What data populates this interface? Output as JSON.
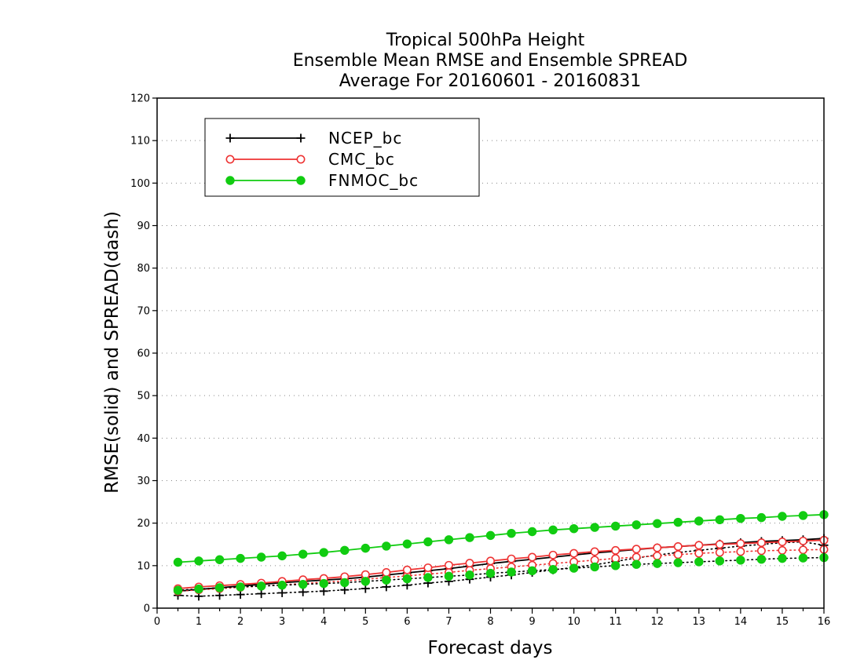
{
  "chart_data": {
    "type": "line",
    "title": [
      "Tropical 500hPa Height",
      "Ensemble Mean RMSE and Ensemble SPREAD",
      "Average For 20160601 - 20160831"
    ],
    "xlabel": "Forecast days",
    "ylabel": "RMSE(solid) and SPREAD(dash)",
    "xlim": [
      0,
      16
    ],
    "ylim": [
      0,
      120
    ],
    "xticks": [
      0,
      1,
      2,
      3,
      4,
      5,
      6,
      7,
      8,
      9,
      10,
      11,
      12,
      13,
      14,
      15,
      16
    ],
    "yticks": [
      0,
      10,
      20,
      30,
      40,
      50,
      60,
      70,
      80,
      90,
      100,
      110,
      120
    ],
    "grid": "horizontal-dotted",
    "legend_position": "top-left",
    "x": [
      0.5,
      1.0,
      1.5,
      2.0,
      2.5,
      3.0,
      3.5,
      4.0,
      4.5,
      5.0,
      5.5,
      6.0,
      6.5,
      7.0,
      7.5,
      8.0,
      8.5,
      9.0,
      9.5,
      10.0,
      10.5,
      11.0,
      11.5,
      12.0,
      12.5,
      13.0,
      13.5,
      14.0,
      14.5,
      15.0,
      15.5,
      16.0
    ],
    "series": [
      {
        "name": "NCEP_bc",
        "color": "#000000",
        "marker": "plus",
        "rmse": [
          4.0,
          4.4,
          4.8,
          5.2,
          5.6,
          6.0,
          6.3,
          6.6,
          6.9,
          7.3,
          7.8,
          8.3,
          8.8,
          9.3,
          9.9,
          10.5,
          11.0,
          11.5,
          12.0,
          12.5,
          13.0,
          13.4,
          13.8,
          14.2,
          14.5,
          14.8,
          15.1,
          15.4,
          15.7,
          15.9,
          16.1,
          16.4
        ],
        "spread": [
          3.0,
          2.8,
          3.0,
          3.2,
          3.4,
          3.6,
          3.8,
          4.0,
          4.3,
          4.6,
          5.0,
          5.4,
          5.9,
          6.3,
          6.8,
          7.3,
          7.8,
          8.4,
          9.0,
          9.6,
          10.2,
          11.0,
          11.8,
          12.5,
          13.1,
          13.6,
          14.1,
          14.6,
          15.0,
          15.4,
          15.6,
          14.8
        ]
      },
      {
        "name": "CMC_bc",
        "color": "#ee3333",
        "marker": "open-circle",
        "rmse": [
          4.6,
          5.0,
          5.3,
          5.6,
          5.9,
          6.3,
          6.7,
          7.0,
          7.4,
          7.9,
          8.4,
          9.0,
          9.5,
          10.1,
          10.6,
          11.1,
          11.6,
          12.0,
          12.5,
          12.9,
          13.3,
          13.6,
          13.9,
          14.2,
          14.5,
          14.8,
          15.0,
          15.2,
          15.4,
          15.6,
          15.8,
          16.0
        ],
        "spread": [
          4.0,
          4.3,
          4.6,
          4.9,
          5.2,
          5.5,
          5.8,
          6.1,
          6.4,
          6.8,
          7.2,
          7.6,
          8.0,
          8.4,
          8.9,
          9.3,
          9.7,
          10.1,
          10.5,
          10.9,
          11.3,
          11.7,
          12.0,
          12.3,
          12.6,
          12.9,
          13.1,
          13.3,
          13.5,
          13.6,
          13.7,
          13.8
        ]
      },
      {
        "name": "FNMOC_bc",
        "color": "#11cc11",
        "marker": "filled-circle",
        "rmse": [
          10.8,
          11.1,
          11.4,
          11.7,
          12.0,
          12.3,
          12.7,
          13.1,
          13.6,
          14.1,
          14.6,
          15.1,
          15.6,
          16.1,
          16.6,
          17.1,
          17.6,
          18.0,
          18.4,
          18.7,
          19.0,
          19.3,
          19.6,
          19.9,
          20.2,
          20.5,
          20.8,
          21.1,
          21.3,
          21.6,
          21.8,
          22.0
        ],
        "spread": [
          4.2,
          4.5,
          4.8,
          5.0,
          5.2,
          5.4,
          5.6,
          5.8,
          6.0,
          6.3,
          6.6,
          6.9,
          7.2,
          7.5,
          7.8,
          8.2,
          8.5,
          8.8,
          9.1,
          9.4,
          9.7,
          10.0,
          10.3,
          10.5,
          10.7,
          10.9,
          11.1,
          11.3,
          11.5,
          11.7,
          11.8,
          11.9
        ]
      }
    ]
  }
}
